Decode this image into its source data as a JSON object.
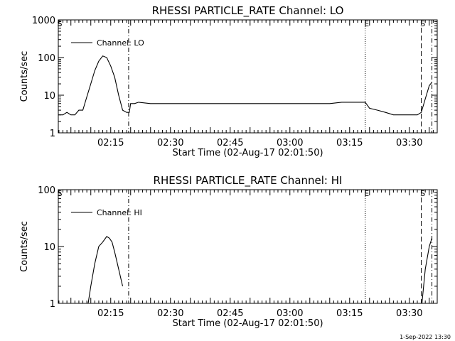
{
  "chart_data": [
    {
      "type": "line",
      "title": "RHESSI PARTICLE_RATE Channel: LO",
      "xlabel": "Start Time (02-Aug-17 02:01:50)",
      "ylabel": "Counts/sec",
      "yscale": "log",
      "ylim": [
        1,
        1000
      ],
      "xlim": [
        "02:01:50",
        "03:37:00"
      ],
      "xticks": [
        "02:15",
        "02:30",
        "02:45",
        "03:00",
        "03:15",
        "03:30"
      ],
      "yticks": [
        "1",
        "10",
        "100",
        "1000"
      ],
      "legend": {
        "position": "top-left",
        "entries": [
          "Channel: LO"
        ]
      },
      "grid": false,
      "markers": [
        {
          "label": "S",
          "time": "02:01:50",
          "style": "dotted"
        },
        {
          "label": "",
          "time": "02:19:30",
          "style": "dash-dot"
        },
        {
          "label": "E",
          "time": "03:18:55",
          "style": "dotted"
        },
        {
          "label": "S",
          "time": "03:33:00",
          "style": "dashed"
        },
        {
          "label": "",
          "time": "03:35:40",
          "style": "dash-dot"
        }
      ],
      "series": [
        {
          "name": "Channel: LO",
          "x": [
            "02:01:50",
            "02:03:00",
            "02:04:00",
            "02:05:00",
            "02:06:00",
            "02:07:00",
            "02:08:00",
            "02:09:00",
            "02:10:00",
            "02:11:00",
            "02:12:00",
            "02:13:00",
            "02:14:00",
            "02:15:00",
            "02:16:00",
            "02:17:00",
            "02:18:00",
            "02:19:00",
            "02:19:40",
            "02:20:00",
            "02:21:00",
            "02:22:00",
            "02:25:00",
            "02:28:00",
            "02:31:00",
            "02:34:00",
            "02:37:00",
            "02:40:00",
            "02:43:00",
            "02:46:00",
            "02:49:00",
            "02:52:00",
            "02:55:00",
            "02:58:00",
            "03:01:00",
            "03:04:00",
            "03:07:00",
            "03:10:00",
            "03:13:00",
            "03:16:00",
            "03:18:55",
            "03:20:00",
            "03:22:00",
            "03:24:00",
            "03:26:00",
            "03:28:00",
            "03:30:00",
            "03:31:00",
            "03:32:00",
            "03:33:00",
            "03:34:00",
            "03:35:00",
            "03:35:40"
          ],
          "y": [
            3,
            3,
            3.5,
            3,
            3,
            4,
            4,
            9,
            20,
            45,
            80,
            110,
            100,
            60,
            30,
            10,
            4,
            3.5,
            3.5,
            6,
            6,
            6.5,
            6,
            6,
            6,
            6,
            6,
            6,
            6,
            6,
            6,
            6,
            6,
            6,
            6,
            6,
            6,
            6,
            6.5,
            6.5,
            6.5,
            4.5,
            4,
            3.5,
            3,
            3,
            3,
            3,
            3,
            3.5,
            8,
            18,
            22
          ]
        }
      ]
    },
    {
      "type": "line",
      "title": "RHESSI PARTICLE_RATE Channel: HI",
      "xlabel": "Start Time (02-Aug-17 02:01:50)",
      "ylabel": "Counts/sec",
      "yscale": "log",
      "ylim": [
        1,
        100
      ],
      "xlim": [
        "02:01:50",
        "03:37:00"
      ],
      "xticks": [
        "02:15",
        "02:30",
        "02:45",
        "03:00",
        "03:15",
        "03:30"
      ],
      "yticks": [
        "1",
        "10",
        "100"
      ],
      "legend": {
        "position": "top-left",
        "entries": [
          "Channel: HI"
        ]
      },
      "grid": false,
      "markers": [
        {
          "label": "S",
          "time": "02:01:50",
          "style": "dotted"
        },
        {
          "label": "",
          "time": "02:19:30",
          "style": "dash-dot"
        },
        {
          "label": "E",
          "time": "03:18:55",
          "style": "dotted"
        },
        {
          "label": "S",
          "time": "03:33:00",
          "style": "dashed"
        },
        {
          "label": "",
          "time": "03:35:40",
          "style": "dash-dot"
        }
      ],
      "series": [
        {
          "name": "Channel: HI",
          "x": [
            "02:09:20",
            "02:10:00",
            "02:11:00",
            "02:12:00",
            "02:13:00",
            "02:14:00",
            "02:14:40",
            "02:15:20",
            "02:16:00",
            "02:17:00",
            "02:18:00",
            "03:33:10",
            "03:34:00",
            "03:35:00",
            "03:35:40"
          ],
          "y": [
            1,
            2,
            5,
            10,
            12,
            15,
            14,
            12,
            8,
            4,
            2,
            1,
            4,
            10,
            14
          ]
        }
      ]
    }
  ],
  "footer": {
    "date_stamp": "1-Sep-2022 13:30"
  }
}
